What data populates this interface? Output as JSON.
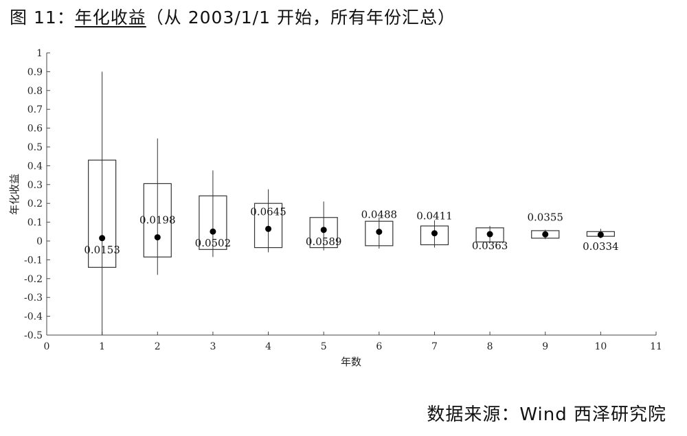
{
  "header": {
    "figure_label": "图 11：",
    "title": "年化收益",
    "subtitle": "（从 2003/1/1 开始，所有年份汇总）"
  },
  "source": {
    "text": "数据来源：Wind  西泽研究院"
  },
  "chart_data": {
    "type": "box",
    "xlabel": "年数",
    "ylabel": "年化收益",
    "xlim": [
      0,
      11
    ],
    "ylim": [
      -0.5,
      1
    ],
    "x_ticks": [
      "0",
      "1",
      "2",
      "3",
      "4",
      "5",
      "6",
      "7",
      "8",
      "9",
      "10",
      "11"
    ],
    "y_ticks": [
      "-0.5",
      "-0.4",
      "-0.3",
      "-0.2",
      "-0.1",
      "0",
      "0.1",
      "0.2",
      "0.3",
      "0.4",
      "0.5",
      "0.6",
      "0.7",
      "0.8",
      "0.9",
      "1"
    ],
    "grid": false,
    "boxes": [
      {
        "x": 1,
        "whisker_low": -0.5,
        "q1": -0.14,
        "q3": 0.43,
        "whisker_high": 0.9,
        "mean": 0.0153,
        "label": "0.0153",
        "label_position": "below"
      },
      {
        "x": 2,
        "whisker_low": -0.18,
        "q1": -0.085,
        "q3": 0.305,
        "whisker_high": 0.545,
        "mean": 0.0198,
        "label": "0.0198",
        "label_position": "above"
      },
      {
        "x": 3,
        "whisker_low": -0.085,
        "q1": -0.045,
        "q3": 0.24,
        "whisker_high": 0.375,
        "mean": 0.0502,
        "label": "0.0502",
        "label_position": "below"
      },
      {
        "x": 4,
        "whisker_low": -0.06,
        "q1": -0.035,
        "q3": 0.2,
        "whisker_high": 0.275,
        "mean": 0.0645,
        "label": "0.0645",
        "label_position": "above"
      },
      {
        "x": 5,
        "whisker_low": -0.05,
        "q1": -0.035,
        "q3": 0.125,
        "whisker_high": 0.21,
        "mean": 0.0589,
        "label": "0.0589",
        "label_position": "below"
      },
      {
        "x": 6,
        "whisker_low": -0.04,
        "q1": -0.025,
        "q3": 0.105,
        "whisker_high": 0.125,
        "mean": 0.0488,
        "label": "0.0488",
        "label_position": "above"
      },
      {
        "x": 7,
        "whisker_low": -0.035,
        "q1": -0.02,
        "q3": 0.08,
        "whisker_high": 0.11,
        "mean": 0.0411,
        "label": "0.0411",
        "label_position": "above"
      },
      {
        "x": 8,
        "whisker_low": -0.01,
        "q1": -0.005,
        "q3": 0.07,
        "whisker_high": 0.08,
        "mean": 0.0363,
        "label": "0.0363",
        "label_position": "below"
      },
      {
        "x": 9,
        "whisker_low": 0.01,
        "q1": 0.015,
        "q3": 0.055,
        "whisker_high": 0.06,
        "mean": 0.0355,
        "label": "0.0355",
        "label_position": "above"
      },
      {
        "x": 10,
        "whisker_low": 0.015,
        "q1": 0.025,
        "q3": 0.05,
        "whisker_high": 0.065,
        "mean": 0.0334,
        "label": "0.0334",
        "label_position": "below"
      }
    ]
  }
}
